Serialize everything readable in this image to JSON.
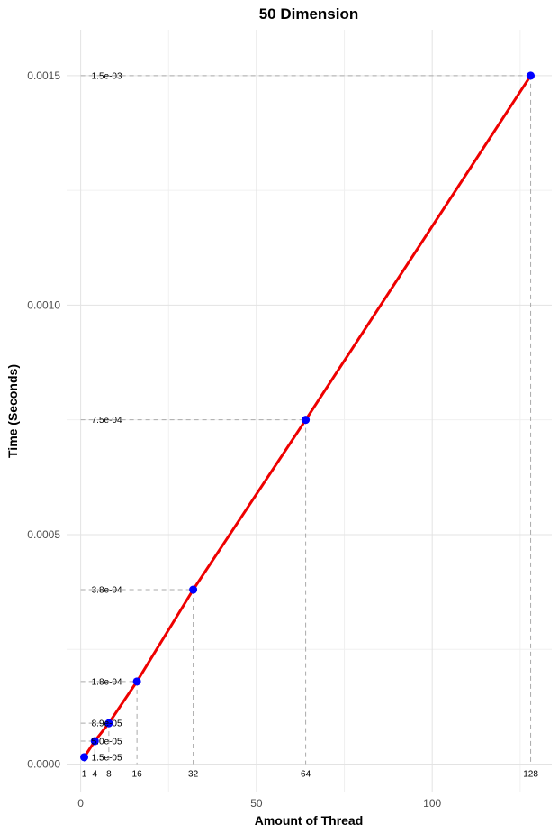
{
  "chart_data": {
    "type": "line",
    "title": "50 Dimension",
    "xlabel": "Amount of Thread",
    "ylabel": "Time (Seconds)",
    "xlim": [
      -4,
      134
    ],
    "ylim": [
      -6e-05,
      0.0016
    ],
    "x_ticks": [
      0,
      50,
      100
    ],
    "y_ticks": [
      0.0,
      0.0005,
      0.001,
      0.0015
    ],
    "y_tick_labels": [
      "0.0000",
      "0.0005",
      "0.0010",
      "0.0015"
    ],
    "grid": true,
    "legend": "none",
    "point_color": "#0000ff",
    "line_color": "#ee0000",
    "guide_color": "#aaaaaa",
    "points": [
      {
        "x": 1,
        "x_label": "1",
        "y": 1.5e-05,
        "y_label": "1.5e-05"
      },
      {
        "x": 4,
        "x_label": "4",
        "y": 5e-05,
        "y_label": "5.0e-05"
      },
      {
        "x": 8,
        "x_label": "8",
        "y": 8.9e-05,
        "y_label": "8.9e-05"
      },
      {
        "x": 16,
        "x_label": "16",
        "y": 0.00018,
        "y_label": "1.8e-04"
      },
      {
        "x": 32,
        "x_label": "32",
        "y": 0.00038,
        "y_label": "3.8e-04"
      },
      {
        "x": 64,
        "x_label": "64",
        "y": 0.00075,
        "y_label": "7.5e-04"
      },
      {
        "x": 128,
        "x_label": "128",
        "y": 0.0015,
        "y_label": "1.5e-03"
      }
    ]
  }
}
